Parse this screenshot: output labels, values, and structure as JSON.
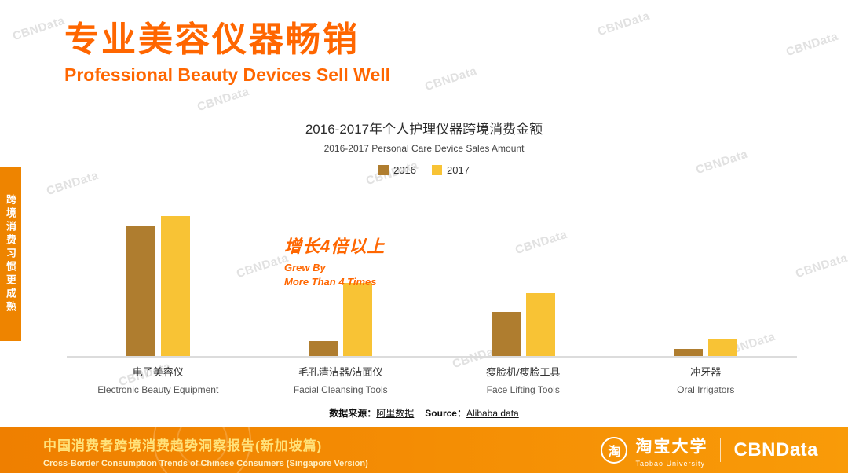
{
  "watermark": "CBNData",
  "sidebar": {
    "vertical_text": "跨境消费习惯更成熟"
  },
  "header": {
    "title_cn": "专业美容仪器畅销",
    "title_en": "Professional Beauty Devices Sell Well"
  },
  "chart_data": {
    "type": "bar",
    "title": "2016-2017年个人护理仪器跨境消费金额",
    "subtitle": "2016-2017 Personal Care Device Sales Amount",
    "legend_position": "top",
    "grid": false,
    "value_axis_shown": false,
    "ylim": [
      0,
      100
    ],
    "note": "No value axis in source image; values are estimated relative bar heights (percent of plot height).",
    "categories": [
      {
        "cn": "电子美容仪",
        "en": "Electronic Beauty Equipment"
      },
      {
        "cn": "毛孔清洁器/洁面仪",
        "en": "Facial Cleansing Tools"
      },
      {
        "cn": "瘦脸机/瘦脸工具",
        "en": "Face Lifting Tools"
      },
      {
        "cn": "冲牙器",
        "en": "Oral Irrigators"
      }
    ],
    "series": [
      {
        "name": "2016",
        "color": "#AF7D2F",
        "values": [
          89,
          10,
          30,
          5
        ]
      },
      {
        "name": "2017",
        "color": "#F8C335",
        "values": [
          96,
          50,
          43,
          12
        ]
      }
    ],
    "annotation": {
      "cn": "增长4倍以上",
      "en_line1": "Grew  By",
      "en_line2": "More Than 4 Times",
      "color": "#FF6600",
      "target": "Facial Cleansing Tools"
    }
  },
  "source": {
    "label_cn": "数据来源：",
    "value_cn": "阿里数据",
    "label_en": "Source：",
    "value_en": "Alibaba data"
  },
  "footer": {
    "title_cn": "中国消费者跨境消费趋势洞察报告(新加坡篇)",
    "title_en": "Cross-Border Consumption Trends of Chinese Consumers  (Singapore Version)",
    "taobao_icon_char": "淘",
    "taobao_cn": "淘宝大学",
    "taobao_en": "Taobao University",
    "brand": "CBNData"
  },
  "colors": {
    "accent": "#FF6600",
    "sidebar_tab": "#EE8400",
    "footer_gradient_start": "#EF7F00",
    "footer_gradient_end": "#F99B08",
    "bar_2016": "#AF7D2F",
    "bar_2017": "#F8C335",
    "watermark_gray": "#C9C9C9"
  }
}
